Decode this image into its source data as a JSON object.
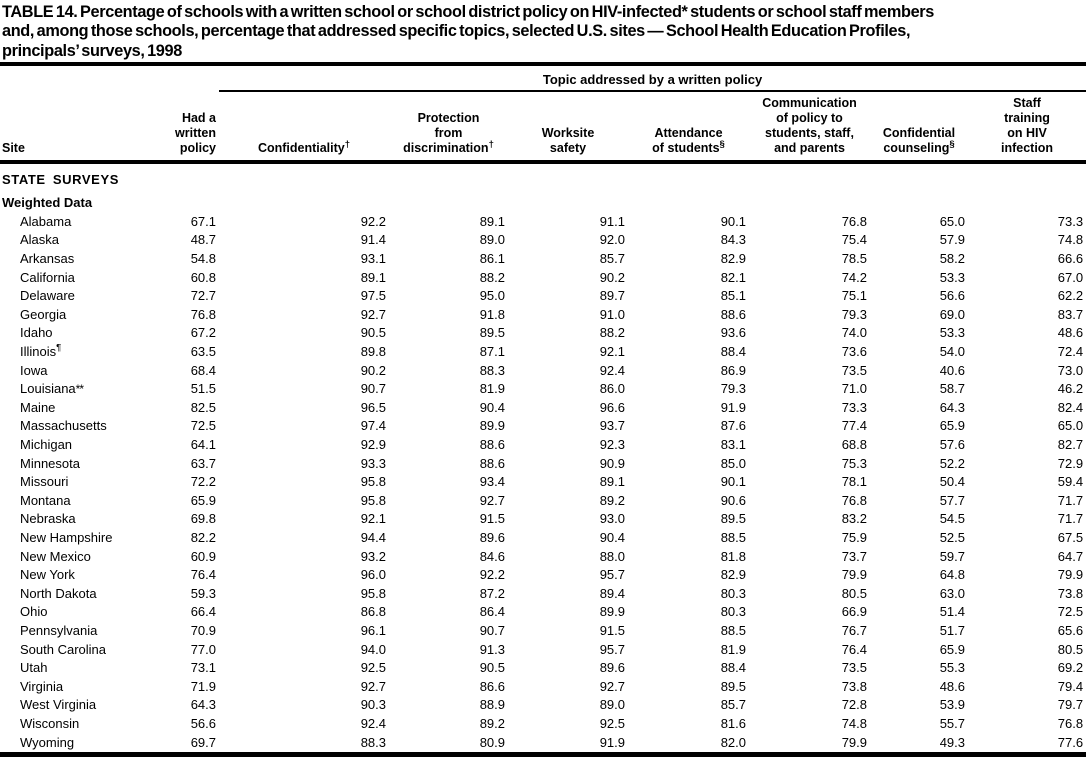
{
  "title": {
    "lines": [
      "TABLE 14. Percentage of schools with a written school or school district policy on HIV-infected* students or school staff members",
      "and, among those schools, percentage that addressed specific topics, selected U.S. sites — School Health Education Profiles,",
      "principals’ surveys, 1998"
    ]
  },
  "colors": {
    "text": "#000000",
    "background": "#ffffff",
    "rule": "#000000"
  },
  "table": {
    "spanner_label": "Topic addressed by a written policy",
    "columns": [
      {
        "id": "site",
        "label": "Site",
        "marker": ""
      },
      {
        "id": "had-written-policy",
        "label": "Had a\nwritten\npolicy",
        "marker": ""
      },
      {
        "id": "confidentiality",
        "label": "Confidentiality",
        "marker": "†"
      },
      {
        "id": "protection-from-discrimination",
        "label": "Protection\nfrom\ndiscrimination",
        "marker": "†"
      },
      {
        "id": "worksite-safety",
        "label": "Worksite\nsafety",
        "marker": ""
      },
      {
        "id": "attendance-of-students",
        "label": "Attendance\nof students",
        "marker": "§"
      },
      {
        "id": "communication-of-policy",
        "label": "Communication\nof policy to\nstudents, staff,\nand parents",
        "marker": ""
      },
      {
        "id": "confidential-counseling",
        "label": "Confidential\ncounseling",
        "marker": "§"
      },
      {
        "id": "staff-training-on-hiv",
        "label": "Staff\ntraining\non HIV\ninfection",
        "marker": ""
      }
    ],
    "sections": [
      {
        "id": "state-surveys",
        "label": "STATE SURVEYS",
        "style": "caps"
      },
      {
        "id": "weighted-data",
        "label": "Weighted Data",
        "style": "sub"
      }
    ],
    "rows": [
      {
        "site": "Alabama",
        "marker": "",
        "values": [
          "67.1",
          "92.2",
          "89.1",
          "91.1",
          "90.1",
          "76.8",
          "65.0",
          "73.3"
        ]
      },
      {
        "site": "Alaska",
        "marker": "",
        "values": [
          "48.7",
          "91.4",
          "89.0",
          "92.0",
          "84.3",
          "75.4",
          "57.9",
          "74.8"
        ]
      },
      {
        "site": "Arkansas",
        "marker": "",
        "values": [
          "54.8",
          "93.1",
          "86.1",
          "85.7",
          "82.9",
          "78.5",
          "58.2",
          "66.6"
        ]
      },
      {
        "site": "California",
        "marker": "",
        "values": [
          "60.8",
          "89.1",
          "88.2",
          "90.2",
          "82.1",
          "74.2",
          "53.3",
          "67.0"
        ]
      },
      {
        "site": "Delaware",
        "marker": "",
        "values": [
          "72.7",
          "97.5",
          "95.0",
          "89.7",
          "85.1",
          "75.1",
          "56.6",
          "62.2"
        ]
      },
      {
        "site": "Georgia",
        "marker": "",
        "values": [
          "76.8",
          "92.7",
          "91.8",
          "91.0",
          "88.6",
          "79.3",
          "69.0",
          "83.7"
        ]
      },
      {
        "site": "Idaho",
        "marker": "",
        "values": [
          "67.2",
          "90.5",
          "89.5",
          "88.2",
          "93.6",
          "74.0",
          "53.3",
          "48.6"
        ]
      },
      {
        "site": "Illinois",
        "marker": "¶",
        "values": [
          "63.5",
          "89.8",
          "87.1",
          "92.1",
          "88.4",
          "73.6",
          "54.0",
          "72.4"
        ]
      },
      {
        "site": "Iowa",
        "marker": "",
        "values": [
          "68.4",
          "90.2",
          "88.3",
          "92.4",
          "86.9",
          "73.5",
          "40.6",
          "73.0"
        ]
      },
      {
        "site": "Louisiana",
        "marker": "**",
        "values": [
          "51.5",
          "90.7",
          "81.9",
          "86.0",
          "79.3",
          "71.0",
          "58.7",
          "46.2"
        ]
      },
      {
        "site": "Maine",
        "marker": "",
        "values": [
          "82.5",
          "96.5",
          "90.4",
          "96.6",
          "91.9",
          "73.3",
          "64.3",
          "82.4"
        ]
      },
      {
        "site": "Massachusetts",
        "marker": "",
        "values": [
          "72.5",
          "97.4",
          "89.9",
          "93.7",
          "87.6",
          "77.4",
          "65.9",
          "65.0"
        ]
      },
      {
        "site": "Michigan",
        "marker": "",
        "values": [
          "64.1",
          "92.9",
          "88.6",
          "92.3",
          "83.1",
          "68.8",
          "57.6",
          "82.7"
        ]
      },
      {
        "site": "Minnesota",
        "marker": "",
        "values": [
          "63.7",
          "93.3",
          "88.6",
          "90.9",
          "85.0",
          "75.3",
          "52.2",
          "72.9"
        ]
      },
      {
        "site": "Missouri",
        "marker": "",
        "values": [
          "72.2",
          "95.8",
          "93.4",
          "89.1",
          "90.1",
          "78.1",
          "50.4",
          "59.4"
        ]
      },
      {
        "site": "Montana",
        "marker": "",
        "values": [
          "65.9",
          "95.8",
          "92.7",
          "89.2",
          "90.6",
          "76.8",
          "57.7",
          "71.7"
        ]
      },
      {
        "site": "Nebraska",
        "marker": "",
        "values": [
          "69.8",
          "92.1",
          "91.5",
          "93.0",
          "89.5",
          "83.2",
          "54.5",
          "71.7"
        ]
      },
      {
        "site": "New Hampshire",
        "marker": "",
        "values": [
          "82.2",
          "94.4",
          "89.6",
          "90.4",
          "88.5",
          "75.9",
          "52.5",
          "67.5"
        ]
      },
      {
        "site": "New Mexico",
        "marker": "",
        "values": [
          "60.9",
          "93.2",
          "84.6",
          "88.0",
          "81.8",
          "73.7",
          "59.7",
          "64.7"
        ]
      },
      {
        "site": "New York",
        "marker": "",
        "values": [
          "76.4",
          "96.0",
          "92.2",
          "95.7",
          "82.9",
          "79.9",
          "64.8",
          "79.9"
        ]
      },
      {
        "site": "North Dakota",
        "marker": "",
        "values": [
          "59.3",
          "95.8",
          "87.2",
          "89.4",
          "80.3",
          "80.5",
          "63.0",
          "73.8"
        ]
      },
      {
        "site": "Ohio",
        "marker": "",
        "values": [
          "66.4",
          "86.8",
          "86.4",
          "89.9",
          "80.3",
          "66.9",
          "51.4",
          "72.5"
        ]
      },
      {
        "site": "Pennsylvania",
        "marker": "",
        "values": [
          "70.9",
          "96.1",
          "90.7",
          "91.5",
          "88.5",
          "76.7",
          "51.7",
          "65.6"
        ]
      },
      {
        "site": "South Carolina",
        "marker": "",
        "values": [
          "77.0",
          "94.0",
          "91.3",
          "95.7",
          "81.9",
          "76.4",
          "65.9",
          "80.5"
        ]
      },
      {
        "site": "Utah",
        "marker": "",
        "values": [
          "73.1",
          "92.5",
          "90.5",
          "89.6",
          "88.4",
          "73.5",
          "55.3",
          "69.2"
        ]
      },
      {
        "site": "Virginia",
        "marker": "",
        "values": [
          "71.9",
          "92.7",
          "86.6",
          "92.7",
          "89.5",
          "73.8",
          "48.6",
          "79.4"
        ]
      },
      {
        "site": "West Virginia",
        "marker": "",
        "values": [
          "64.3",
          "90.3",
          "88.9",
          "89.0",
          "85.7",
          "72.8",
          "53.9",
          "79.7"
        ]
      },
      {
        "site": "Wisconsin",
        "marker": "",
        "values": [
          "56.6",
          "92.4",
          "89.2",
          "92.5",
          "81.6",
          "74.8",
          "55.7",
          "76.8"
        ]
      },
      {
        "site": "Wyoming",
        "marker": "",
        "values": [
          "69.7",
          "88.3",
          "80.9",
          "91.9",
          "82.0",
          "79.9",
          "49.3",
          "77.6"
        ]
      }
    ]
  }
}
